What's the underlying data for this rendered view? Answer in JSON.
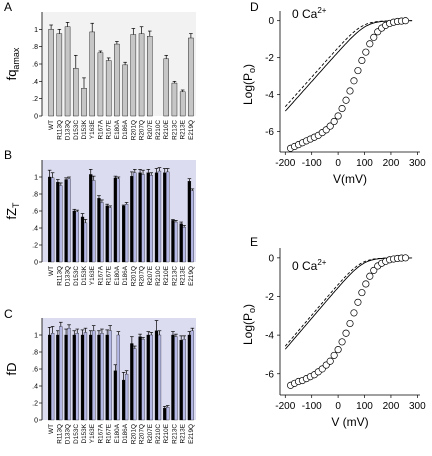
{
  "chart_data": [
    {
      "panel": "A",
      "type": "bar",
      "ylabel": "fq",
      "ylabel_sub": "amax",
      "ylim": [
        0,
        1.2
      ],
      "yticks": [
        0,
        0.2,
        0.4,
        0.6,
        0.8,
        1.0
      ],
      "categories": [
        "WT",
        "R113Q",
        "D133Q",
        "D153C",
        "D153K",
        "Y163E",
        "R167A",
        "R167E",
        "E180A",
        "D186A",
        "R201Q",
        "R207Q",
        "R207E",
        "R210C",
        "R210E",
        "R213C",
        "R213E",
        "E219Q"
      ],
      "series": [
        {
          "color": "#c6c6c6",
          "values": [
            1.0,
            0.95,
            1.03,
            0.55,
            0.32,
            0.97,
            0.73,
            0.64,
            0.83,
            0.59,
            0.94,
            0.95,
            0.92,
            null,
            0.66,
            0.38,
            0.28,
            0.9
          ],
          "errors": [
            0.05,
            0.05,
            0.05,
            0.15,
            0.12,
            0.1,
            0.02,
            0.03,
            0.03,
            0.03,
            0.07,
            0.08,
            0.06,
            null,
            0.04,
            0.02,
            0.02,
            0.05
          ]
        }
      ]
    },
    {
      "panel": "B",
      "type": "bar",
      "ylabel": "fZ",
      "ylabel_sub": "T",
      "ylim": [
        0,
        1.2
      ],
      "yticks": [
        0,
        0.2,
        0.4,
        0.6,
        0.8,
        1.0
      ],
      "categories": [
        "WT",
        "R113Q",
        "D133Q",
        "D153C",
        "D153K",
        "Y163E",
        "R167A",
        "R167E",
        "E180A",
        "D186A",
        "R201Q",
        "R207Q",
        "R207E",
        "R210C",
        "R210E",
        "R213C",
        "R213E",
        "E219Q"
      ],
      "series": [
        {
          "color": "#000000",
          "values": [
            1.0,
            0.94,
            0.97,
            0.6,
            0.53,
            1.03,
            0.75,
            0.66,
            0.99,
            0.66,
            1.01,
            1.05,
            1.05,
            1.05,
            1.05,
            0.49,
            0.45,
            0.95
          ],
          "errors": [
            0.08,
            0.03,
            0.02,
            0.02,
            0.04,
            0.06,
            0.03,
            0.02,
            0.02,
            0.01,
            0.05,
            0.04,
            0.04,
            0.05,
            0.05,
            0.01,
            0.02,
            0.03
          ]
        },
        {
          "color": "#b5b8e4",
          "values": [
            0.99,
            0.9,
            0.98,
            0.59,
            0.46,
            0.96,
            0.7,
            0.64,
            0.98,
            0.68,
            1.05,
            1.03,
            1.02,
            1.07,
            1.06,
            0.47,
            0.41,
            0.84
          ],
          "errors": [
            0.06,
            0.03,
            0.02,
            0.02,
            0.04,
            0.05,
            0.03,
            0.02,
            0.02,
            0.02,
            0.04,
            0.05,
            0.03,
            0.04,
            0.04,
            0.02,
            0.02,
            0.02
          ]
        }
      ]
    },
    {
      "panel": "C",
      "type": "bar",
      "ylabel": "fD",
      "ylabel_sub": "",
      "ylim": [
        0,
        1.2
      ],
      "yticks": [
        0,
        0.2,
        0.4,
        0.6,
        0.8,
        1.0
      ],
      "categories": [
        "WT",
        "R113Q",
        "D133Q",
        "D153C",
        "D153K",
        "Y163E",
        "R167A",
        "R167E",
        "E180A",
        "D186A",
        "R201Q",
        "R207Q",
        "R207E",
        "R210C",
        "R210E",
        "R213C",
        "R213E",
        "E219Q"
      ],
      "series": [
        {
          "color": "#000000",
          "values": [
            1.0,
            1.0,
            1.0,
            1.0,
            1.0,
            1.0,
            1.0,
            1.0,
            0.58,
            0.47,
            0.9,
            0.98,
            1.0,
            1.05,
            0.14,
            1.0,
            0.94,
            1.0
          ],
          "errors": [
            0.09,
            0.05,
            0.07,
            0.05,
            0.06,
            0.05,
            0.05,
            0.06,
            0.07,
            0.09,
            0.08,
            0.03,
            0.04,
            0.12,
            0.02,
            0.04,
            0.05,
            0.04
          ]
        },
        {
          "color": "#b5b8e4",
          "values": [
            1.02,
            1.1,
            1.08,
            1.02,
            1.03,
            1.05,
            1.02,
            1.05,
            1.0,
            0.54,
            0.84,
            0.95,
            1.0,
            1.0,
            0.15,
            0.98,
            0.95,
            1.05
          ],
          "errors": [
            0.08,
            0.05,
            0.04,
            0.05,
            0.05,
            0.06,
            0.05,
            0.06,
            0.04,
            0.04,
            0.03,
            0.02,
            0.03,
            0.05,
            0.02,
            0.03,
            0.04,
            0.03
          ]
        }
      ]
    },
    {
      "panel": "D",
      "type": "scatter",
      "annotation": "0 Ca",
      "annotation_sup": "2+",
      "xlabel": "V(mV)",
      "ylabel": "Log(P",
      "ylabel_sub": "o",
      "ylabel_end": ")",
      "xlim": [
        -220,
        310
      ],
      "ylim": [
        -7.1,
        0.2
      ],
      "xticks": [
        -200,
        -100,
        0,
        100,
        200,
        300
      ],
      "yticks": [
        0,
        -2,
        -4,
        -6
      ],
      "points_x": [
        -180,
        -165,
        -150,
        -135,
        -120,
        -105,
        -90,
        -75,
        -60,
        -45,
        -30,
        -15,
        0,
        15,
        30,
        45,
        60,
        75,
        90,
        105,
        120,
        135,
        150,
        165,
        180,
        195,
        210,
        225,
        240,
        255
      ],
      "points_y": [
        -6.9,
        -6.8,
        -6.7,
        -6.6,
        -6.5,
        -6.4,
        -6.3,
        -6.2,
        -6.05,
        -5.9,
        -5.7,
        -5.45,
        -5.15,
        -4.75,
        -4.3,
        -3.8,
        -3.25,
        -2.7,
        -2.15,
        -1.7,
        -1.25,
        -0.9,
        -0.6,
        -0.4,
        -0.25,
        -0.15,
        -0.08,
        -0.04,
        -0.02,
        0.0
      ],
      "fits": [
        {
          "vh": 105,
          "z": 0.95,
          "floor": -6.85,
          "slope": 0.0032,
          "dash": "none"
        },
        {
          "vh": 90,
          "z": 0.95,
          "floor": -6.95,
          "slope": 0.0032,
          "dash": "3,2"
        }
      ]
    },
    {
      "panel": "E",
      "type": "scatter",
      "annotation": "0 Ca",
      "annotation_sup": "2+",
      "xlabel": "V (mV)",
      "ylabel": "Log(P",
      "ylabel_sub": "o",
      "ylabel_end": ")",
      "xlim": [
        -220,
        310
      ],
      "ylim": [
        -7.1,
        0.2
      ],
      "xticks": [
        -200,
        -100,
        0,
        100,
        200,
        300
      ],
      "yticks": [
        0,
        -2,
        -4,
        -6
      ],
      "points_x": [
        -180,
        -165,
        -150,
        -135,
        -120,
        -105,
        -90,
        -75,
        -60,
        -45,
        -30,
        -15,
        0,
        15,
        30,
        45,
        60,
        75,
        90,
        105,
        120,
        135,
        150,
        165,
        180,
        195,
        210,
        225,
        240,
        255
      ],
      "points_y": [
        -6.6,
        -6.5,
        -6.4,
        -6.35,
        -6.25,
        -6.15,
        -6.05,
        -5.9,
        -5.75,
        -5.55,
        -5.35,
        -5.05,
        -4.75,
        -4.35,
        -3.9,
        -3.4,
        -2.85,
        -2.3,
        -1.8,
        -1.35,
        -0.95,
        -0.65,
        -0.42,
        -0.28,
        -0.18,
        -0.1,
        -0.06,
        -0.03,
        -0.01,
        0.0
      ],
      "fits": [
        {
          "vh": 95,
          "z": 0.95,
          "floor": -6.55,
          "slope": 0.0028,
          "dash": "none"
        },
        {
          "vh": 85,
          "z": 0.95,
          "floor": -6.75,
          "slope": 0.003,
          "dash": "3,2"
        }
      ]
    }
  ]
}
